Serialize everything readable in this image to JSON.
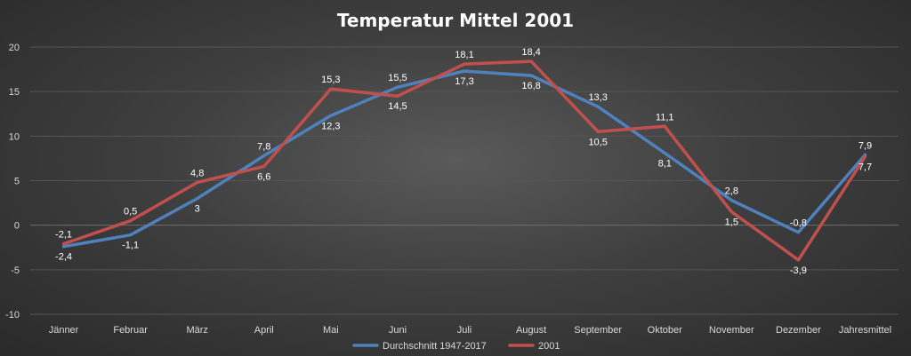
{
  "chart_data": {
    "type": "line",
    "title": "Temperatur Mittel 2001",
    "categories": [
      "Jänner",
      "Februar",
      "März",
      "April",
      "Mai",
      "Juni",
      "Juli",
      "August",
      "September",
      "Oktober",
      "November",
      "Dezember",
      "Jahresmittel"
    ],
    "series": [
      {
        "name": "Durchschnitt 1947-2017",
        "color": "#4f81bd",
        "values": [
          -2.4,
          -1.1,
          3,
          7.8,
          12.3,
          15.5,
          17.3,
          16.8,
          13.3,
          8.1,
          2.8,
          -0.8,
          7.9
        ],
        "labels": [
          "-2,4",
          "-1,1",
          "3",
          "7,8",
          "12,3",
          "15,5",
          "17,3",
          "16,8",
          "13,3",
          "8,1",
          "2,8",
          "-0,8",
          "7,9"
        ]
      },
      {
        "name": "2001",
        "color": "#c0504d",
        "values": [
          -2.1,
          0.5,
          4.8,
          6.6,
          15.3,
          14.5,
          18.1,
          18.4,
          10.5,
          11.1,
          1.5,
          -3.9,
          7.7
        ],
        "labels": [
          "-2,1",
          "0,5",
          "4,8",
          "6,6",
          "15,3",
          "14,5",
          "18,1",
          "18,4",
          "10,5",
          "11,1",
          "1,5",
          "-3,9",
          "7,7"
        ]
      }
    ],
    "yticks": [
      "-10",
      "-5",
      "0",
      "5",
      "10",
      "15",
      "20"
    ],
    "ylim": [
      -10,
      20
    ],
    "grid": true,
    "legend_position": "bottom"
  }
}
